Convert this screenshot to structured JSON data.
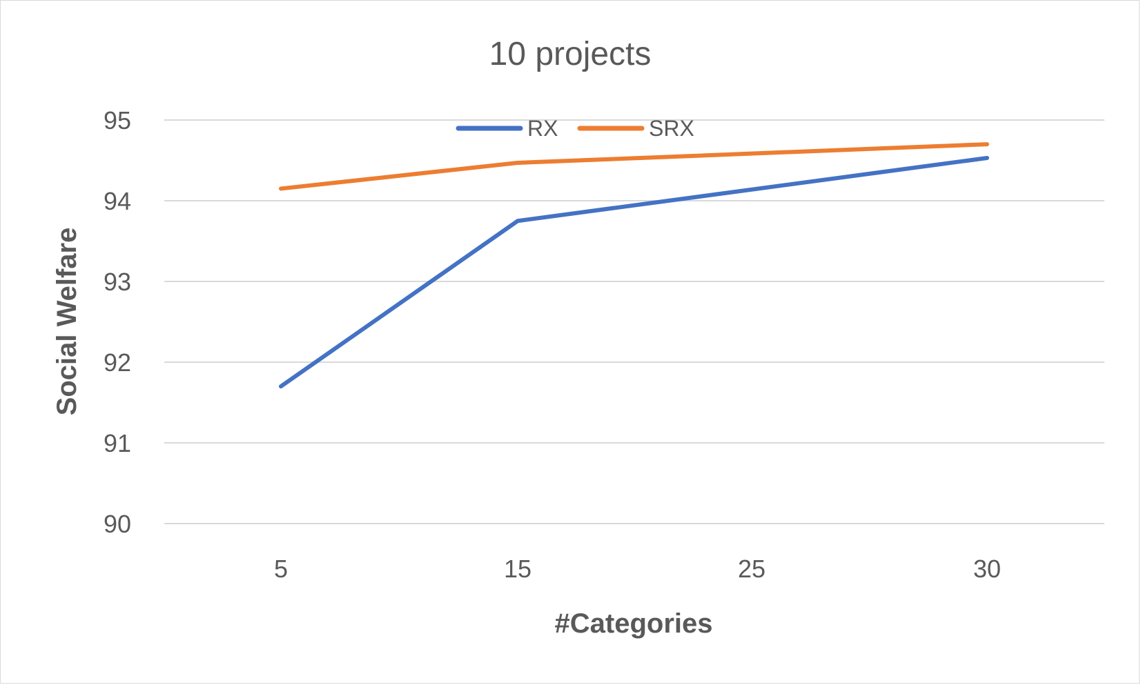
{
  "chart_data": {
    "type": "line",
    "title": "10 projects",
    "xlabel": "#Categories",
    "ylabel": "Social Welfare",
    "categories": [
      "5",
      "15",
      "25",
      "30"
    ],
    "ylim": [
      90,
      95
    ],
    "yticks": [
      "90",
      "91",
      "92",
      "93",
      "94",
      "95"
    ],
    "grid": true,
    "legend_position": "top",
    "series": [
      {
        "name": "RX",
        "color": "#4472c4",
        "values": [
          91.7,
          93.75,
          null,
          94.53
        ]
      },
      {
        "name": "SRX",
        "color": "#ed7d31",
        "values": [
          94.15,
          94.47,
          null,
          94.7
        ]
      }
    ]
  }
}
